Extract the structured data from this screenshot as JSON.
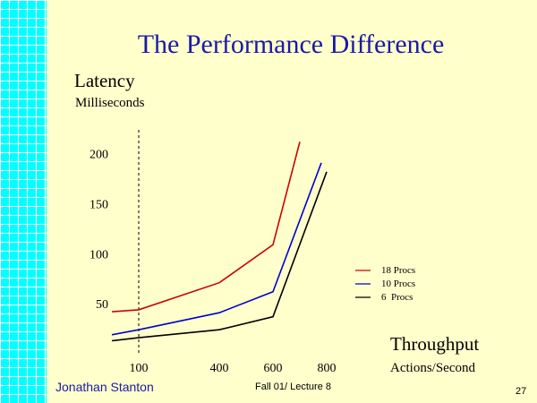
{
  "slide": {
    "title": "The Performance Difference",
    "footer_author": "Jonathan Stanton",
    "footer_course": "Fall 01/ Lecture 8",
    "page_number": "27"
  },
  "colors": {
    "background": "#ffffcc",
    "title": "#1a1aa6",
    "grid_band": "#00ffff"
  },
  "chart_data": {
    "type": "line",
    "y_title": "Latency",
    "y_units": "Milliseconds",
    "x_title": "Throughput",
    "x_units": "Actions/Second",
    "x_ticks": [
      100,
      400,
      600,
      800
    ],
    "x_tick_labels": [
      "100",
      "400",
      "600",
      "800"
    ],
    "y_ticks": [
      50,
      100,
      150,
      200
    ],
    "y_tick_labels": [
      "50",
      "100",
      "150",
      "200"
    ],
    "xlim": [
      0,
      870
    ],
    "ylim": [
      0,
      215
    ],
    "reference_line": {
      "x": 100,
      "style": "dashed"
    },
    "grid": false,
    "legend_position": "right",
    "series": [
      {
        "name": "18 Procs",
        "color": "#cc0000",
        "x": [
          0,
          100,
          400,
          600,
          700
        ],
        "y": [
          42,
          44,
          71,
          109,
          212
        ]
      },
      {
        "name": "10 Procs",
        "color": "#0000cc",
        "x": [
          0,
          100,
          400,
          600,
          780
        ],
        "y": [
          19,
          24,
          41,
          62,
          191
        ]
      },
      {
        "name": "6  Procs",
        "color": "#000000",
        "x": [
          0,
          100,
          400,
          600,
          800
        ],
        "y": [
          13,
          16,
          24,
          37,
          182
        ]
      }
    ]
  }
}
